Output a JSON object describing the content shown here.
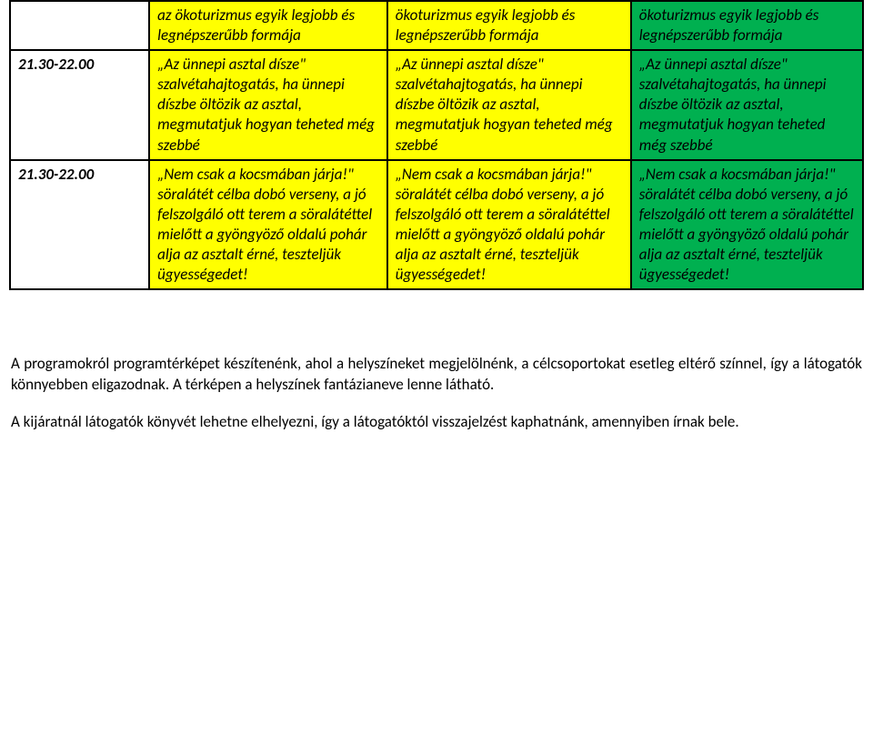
{
  "table": {
    "rows": [
      {
        "time": "",
        "c1": "az ökoturizmus egyik legjobb és legnépszerűbb formája",
        "c2": "ökoturizmus egyik legjobb és legnépszerűbb formája",
        "c3": "ökoturizmus egyik legjobb és legnépszerűbb formája"
      },
      {
        "time": "21.30-22.00",
        "c1": "„Az ünnepi asztal dísze\" szalvétahajtogatás, ha ünnepi díszbe öltözik az asztal, megmutatjuk hogyan teheted még szebbé",
        "c2": "„Az ünnepi asztal dísze\" szalvétahajtogatás, ha ünnepi díszbe öltözik az asztal, megmutatjuk hogyan teheted még szebbé",
        "c3": "„Az ünnepi asztal dísze\" szalvétahajtogatás, ha ünnepi díszbe öltözik az asztal, megmutatjuk hogyan teheted még szebbé"
      },
      {
        "time": "21.30-22.00",
        "c1": "„Nem csak a kocsmában járja!\" söralátét célba dobó verseny, a jó felszolgáló ott terem a söralátéttel mielőtt a gyöngyöző oldalú pohár alja az asztalt érné, teszteljük ügyességedet!",
        "c2": "„Nem csak a kocsmában járja!\" söralátét célba dobó verseny, a jó felszolgáló ott terem a söralátéttel mielőtt a gyöngyöző oldalú pohár alja az asztalt érné, teszteljük ügyességedet!",
        "c3": "„Nem csak a kocsmában járja!\" söralátét célba dobó verseny, a jó felszolgáló ott terem a söralátéttel mielőtt a gyöngyöző oldalú pohár alja az asztalt érné, teszteljük ügyességedet!"
      }
    ]
  },
  "paragraphs": {
    "p1": "A programokról programtérképet készítenénk, ahol a helyszíneket megjelölnénk, a célcsoportokat esetleg eltérő színnel, így a látogatók könnyebben eligazodnak. A térképen a helyszínek fantázianeve lenne látható.",
    "p2": "A kijáratnál látogatók könyvét lehetne elhelyezni, így a látogatóktól visszajelzést kaphatnánk, amennyiben írnak bele."
  },
  "colors": {
    "yellow": "#ffff00",
    "green": "#00b050",
    "border": "#000000",
    "background": "#ffffff",
    "text": "#000000"
  }
}
